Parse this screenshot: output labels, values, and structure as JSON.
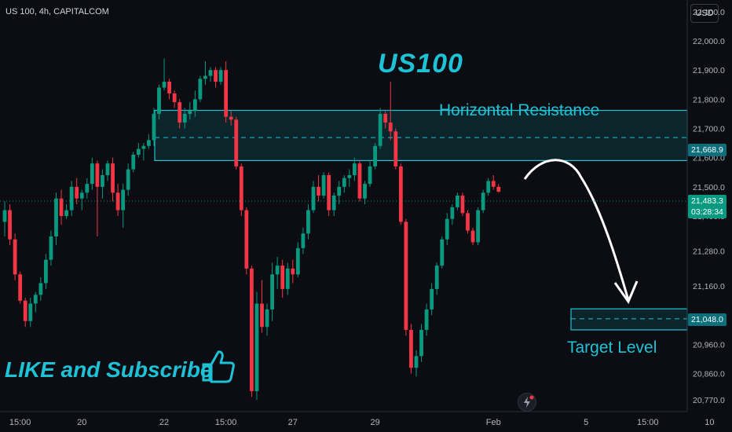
{
  "header": {
    "symbol": "US 100, 4h, CAPITALCOM",
    "currency_button": "USD"
  },
  "annotations": {
    "title": "US100",
    "resistance_label": "Horizontal Resistance",
    "target_label": "Target Level",
    "promo_text": "LIKE and Subscribe"
  },
  "price_tags": {
    "resistance_price": "21,668.9",
    "last_price": "21,483.3",
    "countdown": "03:28:34",
    "target_price": "21,048.0"
  },
  "colors": {
    "up": "#089981",
    "down": "#f23645",
    "accent": "#1ec2d7",
    "zone_fill": "#0e3a40"
  },
  "chart_data": {
    "type": "candlestick",
    "title": "",
    "ylim": [
      20730,
      22140
    ],
    "y_ticks": [
      {
        "value": 22100,
        "label": "22,100.0"
      },
      {
        "value": 22000,
        "label": "22,000.0"
      },
      {
        "value": 21900,
        "label": "21,900.0"
      },
      {
        "value": 21800,
        "label": "21,800.0"
      },
      {
        "value": 21700,
        "label": "21,700.0"
      },
      {
        "value": 21600,
        "label": "21,600.0"
      },
      {
        "value": 21500,
        "label": "21,500.0"
      },
      {
        "value": 21400,
        "label": "21,400.0"
      },
      {
        "value": 21280,
        "label": "21,280.0"
      },
      {
        "value": 21160,
        "label": "21,160.0"
      },
      {
        "value": 20960,
        "label": "20,960.0"
      },
      {
        "value": 20860,
        "label": "20,860.0"
      },
      {
        "value": 20770,
        "label": "20,770.0"
      }
    ],
    "x_ticks": [
      {
        "index": 3,
        "label": "15:00"
      },
      {
        "index": 15,
        "label": "20"
      },
      {
        "index": 31,
        "label": "22"
      },
      {
        "index": 43,
        "label": "15:00"
      },
      {
        "index": 56,
        "label": "27"
      },
      {
        "index": 72,
        "label": "29"
      },
      {
        "index": 95,
        "label": "Feb"
      },
      {
        "index": 113,
        "label": "5"
      },
      {
        "index": 125,
        "label": "15:00"
      },
      {
        "index": 137,
        "label": "10"
      }
    ],
    "candles": [
      [
        21380,
        21450,
        21330,
        21420
      ],
      [
        21420,
        21440,
        21300,
        21320
      ],
      [
        21320,
        21340,
        21180,
        21200
      ],
      [
        21200,
        21210,
        21100,
        21110
      ],
      [
        21110,
        21120,
        21020,
        21040
      ],
      [
        21040,
        21120,
        21020,
        21100
      ],
      [
        21100,
        21140,
        21070,
        21130
      ],
      [
        21130,
        21190,
        21110,
        21170
      ],
      [
        21170,
        21270,
        21150,
        21250
      ],
      [
        21250,
        21350,
        21230,
        21330
      ],
      [
        21330,
        21480,
        21300,
        21460
      ],
      [
        21460,
        21490,
        21370,
        21400
      ],
      [
        21400,
        21440,
        21390,
        21420
      ],
      [
        21420,
        21520,
        21400,
        21500
      ],
      [
        21500,
        21530,
        21440,
        21460
      ],
      [
        21460,
        21490,
        21420,
        21480
      ],
      [
        21480,
        21530,
        21460,
        21510
      ],
      [
        21510,
        21600,
        21490,
        21580
      ],
      [
        21580,
        21590,
        21330,
        21500
      ],
      [
        21500,
        21560,
        21460,
        21540
      ],
      [
        21540,
        21590,
        21520,
        21580
      ],
      [
        21580,
        21600,
        21450,
        21480
      ],
      [
        21480,
        21510,
        21400,
        21420
      ],
      [
        21420,
        21510,
        21360,
        21490
      ],
      [
        21490,
        21580,
        21470,
        21560
      ],
      [
        21560,
        21620,
        21550,
        21610
      ],
      [
        21610,
        21650,
        21600,
        21630
      ],
      [
        21630,
        21650,
        21590,
        21640
      ],
      [
        21640,
        21680,
        21630,
        21660
      ],
      [
        21660,
        21770,
        21640,
        21750
      ],
      [
        21750,
        21850,
        21730,
        21840
      ],
      [
        21840,
        21940,
        21830,
        21860
      ],
      [
        21860,
        21870,
        21800,
        21820
      ],
      [
        21820,
        21830,
        21770,
        21790
      ],
      [
        21790,
        21800,
        21700,
        21720
      ],
      [
        21720,
        21770,
        21700,
        21750
      ],
      [
        21750,
        21790,
        21730,
        21760
      ],
      [
        21760,
        21830,
        21740,
        21800
      ],
      [
        21800,
        21880,
        21790,
        21870
      ],
      [
        21870,
        21930,
        21850,
        21880
      ],
      [
        21880,
        21910,
        21860,
        21900
      ],
      [
        21900,
        21910,
        21840,
        21860
      ],
      [
        21860,
        21910,
        21850,
        21900
      ],
      [
        21900,
        21930,
        21720,
        21740
      ],
      [
        21740,
        21760,
        21710,
        21730
      ],
      [
        21730,
        21740,
        21560,
        21570
      ],
      [
        21570,
        21580,
        21400,
        21420
      ],
      [
        21420,
        21430,
        21200,
        21220
      ],
      [
        21220,
        21230,
        20780,
        20800
      ],
      [
        20800,
        21140,
        20770,
        21100
      ],
      [
        21100,
        21180,
        21000,
        21020
      ],
      [
        21020,
        21100,
        20990,
        21080
      ],
      [
        21080,
        21240,
        21040,
        21200
      ],
      [
        21200,
        21260,
        21150,
        21230
      ],
      [
        21230,
        21250,
        21120,
        21150
      ],
      [
        21150,
        21240,
        21130,
        21220
      ],
      [
        21220,
        21250,
        21170,
        21200
      ],
      [
        21200,
        21310,
        21190,
        21290
      ],
      [
        21290,
        21360,
        21270,
        21340
      ],
      [
        21340,
        21440,
        21320,
        21420
      ],
      [
        21420,
        21520,
        21410,
        21500
      ],
      [
        21500,
        21540,
        21450,
        21470
      ],
      [
        21470,
        21550,
        21460,
        21540
      ],
      [
        21540,
        21550,
        21400,
        21420
      ],
      [
        21420,
        21480,
        21400,
        21470
      ],
      [
        21470,
        21520,
        21440,
        21500
      ],
      [
        21500,
        21540,
        21480,
        21530
      ],
      [
        21530,
        21560,
        21500,
        21540
      ],
      [
        21540,
        21600,
        21520,
        21580
      ],
      [
        21580,
        21590,
        21450,
        21460
      ],
      [
        21460,
        21520,
        21440,
        21510
      ],
      [
        21510,
        21590,
        21500,
        21570
      ],
      [
        21570,
        21650,
        21560,
        21640
      ],
      [
        21640,
        21770,
        21630,
        21750
      ],
      [
        21750,
        21760,
        21700,
        21720
      ],
      [
        21720,
        21860,
        21660,
        21690
      ],
      [
        21690,
        21700,
        21560,
        21570
      ],
      [
        21570,
        21580,
        21370,
        21380
      ],
      [
        21380,
        21390,
        20990,
        21010
      ],
      [
        21010,
        21030,
        20860,
        20880
      ],
      [
        20880,
        20940,
        20850,
        20920
      ],
      [
        20920,
        21030,
        20900,
        21010
      ],
      [
        21010,
        21100,
        20990,
        21080
      ],
      [
        21080,
        21170,
        21060,
        21150
      ],
      [
        21150,
        21240,
        21130,
        21230
      ],
      [
        21230,
        21330,
        21220,
        21320
      ],
      [
        21320,
        21410,
        21300,
        21390
      ],
      [
        21390,
        21440,
        21370,
        21430
      ],
      [
        21430,
        21480,
        21420,
        21470
      ],
      [
        21470,
        21480,
        21400,
        21410
      ],
      [
        21410,
        21420,
        21340,
        21350
      ],
      [
        21350,
        21360,
        21300,
        21310
      ],
      [
        21310,
        21430,
        21300,
        21420
      ],
      [
        21420,
        21490,
        21410,
        21480
      ],
      [
        21480,
        21530,
        21470,
        21520
      ],
      [
        21520,
        21540,
        21490,
        21500
      ],
      [
        21500,
        21510,
        21480,
        21483.3
      ]
    ],
    "resistance_zone": {
      "low": 21590,
      "high": 21762,
      "mid": 21668.9
    },
    "target_zone": {
      "low": 21010,
      "high": 21082,
      "mid": 21048.0
    },
    "last_price": 21483.3
  }
}
